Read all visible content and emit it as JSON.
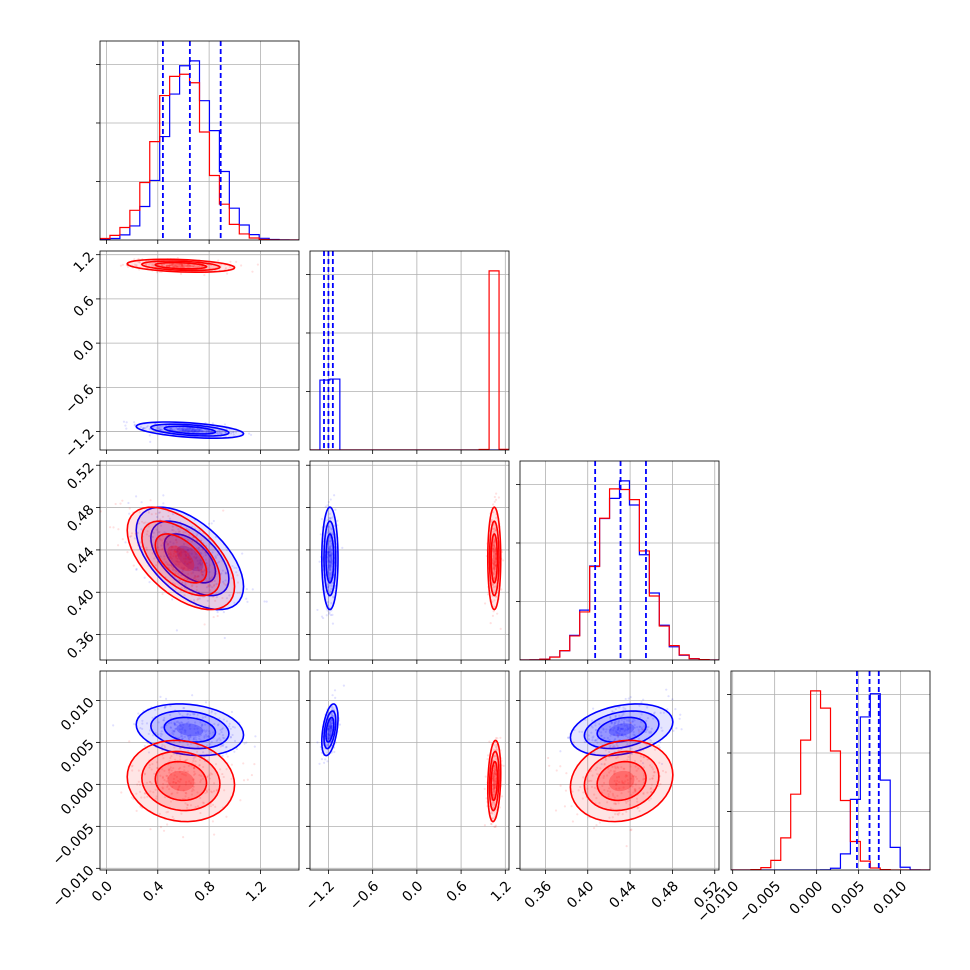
{
  "chart_data": {
    "type": "corner",
    "title": "",
    "grid": true,
    "colors": {
      "series_a": "#0000ff",
      "series_b": "#ff0000"
    },
    "series": [
      {
        "color": "#0000ff",
        "means": [
          0.65,
          -1.18,
          0.432,
          0.0065
        ],
        "stds": [
          0.19,
          0.05,
          0.022,
          0.0014
        ],
        "quantiles": {
          "p0": [
            0.44,
            0.65,
            0.89
          ],
          "p1": [
            -1.26,
            -1.2,
            -1.14
          ],
          "p2": [
            0.407,
            0.431,
            0.455
          ],
          "p3": [
            0.0048,
            0.0063,
            0.0074
          ]
        }
      },
      {
        "color": "#ff0000",
        "means": [
          0.58,
          1.05,
          0.432,
          0.0004
        ],
        "stds": [
          0.19,
          0.04,
          0.022,
          0.0022
        ]
      }
    ],
    "axes": [
      {
        "range": [
          -0.05,
          1.5
        ],
        "ticks": [
          "0.0",
          "0.4",
          "0.8",
          "1.2"
        ],
        "tick_values": [
          0.0,
          0.4,
          0.8,
          1.2
        ]
      },
      {
        "range": [
          -1.45,
          1.25
        ],
        "ticks": [
          "−1.2",
          "−0.6",
          "0.0",
          "0.6",
          "1.2"
        ],
        "tick_values": [
          -1.2,
          -0.6,
          0.0,
          0.6,
          1.2
        ]
      },
      {
        "range": [
          0.336,
          0.524
        ],
        "ticks": [
          "0.36",
          "0.40",
          "0.44",
          "0.48",
          "0.52"
        ],
        "tick_values": [
          0.36,
          0.4,
          0.44,
          0.48,
          0.52
        ]
      },
      {
        "range": [
          -0.0102,
          0.0135
        ],
        "ticks": [
          "−0.010",
          "−0.005",
          "0.000",
          "0.005",
          "0.010"
        ],
        "tick_values": [
          -0.01,
          -0.005,
          0.0,
          0.005,
          0.01
        ]
      }
    ],
    "correlations": {
      "0-1": {
        "blue": -0.45,
        "red": -0.3
      },
      "0-2": {
        "blue": -0.55,
        "red": -0.55
      },
      "0-3": {
        "blue": -0.2,
        "red": -0.1
      },
      "1-2": {
        "blue": 0.0,
        "red": 0.0
      },
      "1-3": {
        "blue": 0.45,
        "red": 0.2
      },
      "2-3": {
        "blue": 0.3,
        "red": 0.15
      }
    }
  }
}
